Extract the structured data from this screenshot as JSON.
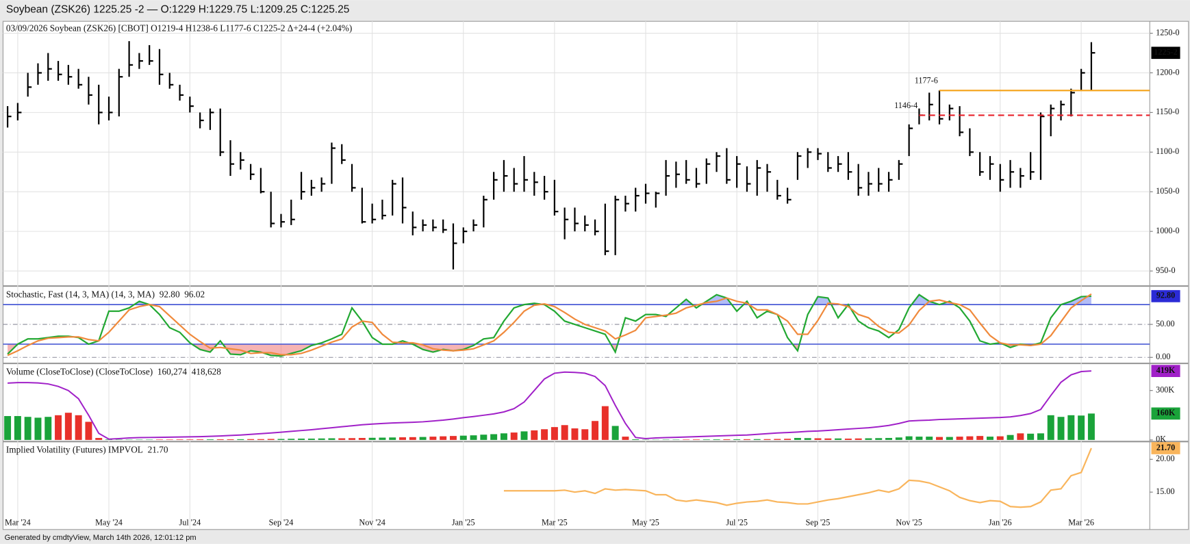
{
  "header": "Soybean (ZSK26) 1225.25 -2 — O:1229 H:1229.75 L:1209.25 C:1225.25",
  "footer": "Generated by cmdtyView, March 14th 2026, 12:01:12 pm",
  "chart_data": [
    {
      "type": "ohlc",
      "title": "03/09/2026 Soybean (ZSK26) [CBOT] O1219-4 H1238-6 L1177-6 C1225-2 Δ+24-4 (+2.04%)",
      "categories": [
        null,
        "Mar '24",
        null,
        null,
        null,
        null,
        null,
        null,
        null,
        null,
        "May '24",
        null,
        null,
        null,
        null,
        null,
        null,
        null,
        "Jul '24",
        null,
        null,
        null,
        null,
        null,
        null,
        null,
        null,
        "Sep '24",
        null,
        null,
        null,
        null,
        null,
        null,
        null,
        null,
        "Nov '24",
        null,
        null,
        null,
        null,
        null,
        null,
        null,
        null,
        "Jan '25",
        null,
        null,
        null,
        null,
        null,
        null,
        null,
        null,
        "Mar '25",
        null,
        null,
        null,
        null,
        null,
        null,
        null,
        null,
        "May '25",
        null,
        null,
        null,
        null,
        null,
        null,
        null,
        null,
        "Jul '25",
        null,
        null,
        null,
        null,
        null,
        null,
        null,
        "Sep '25",
        null,
        null,
        null,
        null,
        null,
        null,
        null,
        null,
        "Nov '25",
        null,
        null,
        null,
        null,
        null,
        null,
        null,
        null,
        "Jan '26",
        null,
        null,
        null,
        null,
        null,
        null,
        null,
        "Mar '26",
        null
      ],
      "high": [
        1158,
        1162,
        1200,
        1212,
        1225,
        1215,
        1210,
        1205,
        1195,
        1185,
        1170,
        1205,
        1240,
        1225,
        1235,
        1230,
        1200,
        1185,
        1170,
        1150,
        1155,
        1155,
        1115,
        1100,
        1085,
        1080,
        1050,
        1022,
        1040,
        1075,
        1065,
        1068,
        1112,
        1110,
        1085,
        1055,
        1035,
        1040,
        1065,
        1068,
        1025,
        1015,
        1015,
        1015,
        1010,
        1005,
        1015,
        1045,
        1075,
        1090,
        1080,
        1095,
        1075,
        1070,
        1065,
        1030,
        1030,
        1020,
        1015,
        1035,
        1045,
        1045,
        1055,
        1060,
        1050,
        1090,
        1088,
        1090,
        1080,
        1092,
        1100,
        1105,
        1095,
        1082,
        1090,
        1085,
        1065,
        1055,
        1100,
        1105,
        1105,
        1100,
        1095,
        1100,
        1085,
        1075,
        1080,
        1075,
        1090,
        1135,
        1155,
        1175,
        1177.75,
        1160,
        1158,
        1130,
        1100,
        1095,
        1085,
        1090,
        1080,
        1100,
        1150,
        1160,
        1165,
        1180,
        1205,
        1238.75
      ],
      "low": [
        1131,
        1140,
        1170,
        1185,
        1190,
        1190,
        1185,
        1180,
        1160,
        1135,
        1140,
        1145,
        1195,
        1205,
        1210,
        1185,
        1180,
        1165,
        1150,
        1130,
        1128,
        1095,
        1070,
        1078,
        1065,
        1048,
        1005,
        1005,
        1008,
        1040,
        1045,
        1050,
        1060,
        1085,
        1050,
        1010,
        1010,
        1015,
        1020,
        1010,
        995,
        1000,
        1000,
        998,
        952,
        985,
        1000,
        1005,
        1040,
        1050,
        1050,
        1050,
        1045,
        1040,
        1020,
        990,
        1000,
        1000,
        995,
        970,
        970,
        1025,
        1025,
        1035,
        1030,
        1045,
        1055,
        1060,
        1055,
        1060,
        1075,
        1060,
        1055,
        1050,
        1045,
        1050,
        1040,
        1035,
        1065,
        1080,
        1090,
        1075,
        1075,
        1065,
        1045,
        1045,
        1050,
        1050,
        1065,
        1095,
        1135,
        1140,
        1135,
        1140,
        1120,
        1095,
        1070,
        1065,
        1050,
        1055,
        1055,
        1065,
        1065,
        1120,
        1140,
        1145,
        1178,
        1177.75
      ],
      "close": [
        1145,
        1150,
        1182,
        1200,
        1205,
        1198,
        1195,
        1185,
        1172,
        1150,
        1150,
        1195,
        1210,
        1215,
        1215,
        1198,
        1185,
        1172,
        1158,
        1140,
        1150,
        1100,
        1085,
        1090,
        1072,
        1050,
        1010,
        1012,
        1015,
        1050,
        1055,
        1060,
        1105,
        1090,
        1055,
        1012,
        1015,
        1020,
        1060,
        1030,
        1005,
        1008,
        1005,
        1002,
        985,
        1000,
        1008,
        1040,
        1065,
        1070,
        1060,
        1065,
        1062,
        1050,
        1025,
        1015,
        1010,
        1008,
        1000,
        975,
        1040,
        1035,
        1045,
        1048,
        1048,
        1070,
        1072,
        1065,
        1060,
        1085,
        1095,
        1065,
        1085,
        1060,
        1080,
        1075,
        1045,
        1040,
        1095,
        1100,
        1098,
        1080,
        1085,
        1075,
        1055,
        1060,
        1060,
        1065,
        1085,
        1130,
        1146.5,
        1160,
        1142,
        1155,
        1125,
        1100,
        1075,
        1085,
        1065,
        1075,
        1070,
        1075,
        1145,
        1155,
        1160,
        1175,
        1200,
        1225.25
      ],
      "color": "#000000",
      "ylim": [
        932,
        1265
      ],
      "yticks": [
        {
          "value": 950,
          "label": "950-0"
        },
        {
          "value": 1000,
          "label": "1000-0"
        },
        {
          "value": 1050,
          "label": "1050-0"
        },
        {
          "value": 1100,
          "label": "1100-0"
        },
        {
          "value": 1150,
          "label": "1150-0"
        },
        {
          "value": 1200,
          "label": "1200-0"
        },
        {
          "value": 1250,
          "label": "1250-0"
        }
      ],
      "last_label": "1225-2",
      "annotations": [
        {
          "label": "1177-6",
          "value": 1177.75,
          "color": "#f5a623",
          "dashed": false
        },
        {
          "label": "1146-4",
          "value": 1146.5,
          "color": "#e8202a",
          "dashed": true
        }
      ],
      "grid": true
    },
    {
      "type": "line",
      "title": "Stochastic, Fast (14, 3, MA)  (14, 3, MA)",
      "series": [
        {
          "color": "#22a832",
          "label_color": "#2b2bd6",
          "value_label": "92.80",
          "values": [
            5,
            20,
            28,
            28,
            30,
            32,
            32,
            30,
            20,
            25,
            70,
            70,
            75,
            85,
            80,
            65,
            45,
            38,
            22,
            12,
            8,
            25,
            5,
            4,
            10,
            8,
            3,
            2,
            6,
            10,
            18,
            22,
            28,
            35,
            75,
            55,
            30,
            20,
            20,
            25,
            20,
            12,
            8,
            12,
            10,
            12,
            18,
            28,
            30,
            55,
            75,
            80,
            82,
            80,
            70,
            55,
            50,
            45,
            40,
            35,
            8,
            60,
            55,
            65,
            65,
            62,
            75,
            88,
            75,
            85,
            95,
            90,
            70,
            85,
            60,
            70,
            65,
            30,
            10,
            65,
            92,
            90,
            60,
            80,
            55,
            45,
            40,
            30,
            42,
            75,
            95,
            85,
            80,
            85,
            75,
            55,
            25,
            20,
            22,
            15,
            20,
            18,
            22,
            60,
            80,
            85,
            92,
            92.8
          ]
        },
        {
          "color": "#f08a3c",
          "label_color": "#f08a3c",
          "value_label": "96.02",
          "values": [
            3,
            10,
            18,
            25,
            29,
            30,
            31,
            31,
            27,
            25,
            38,
            55,
            72,
            77,
            80,
            77,
            63,
            49,
            35,
            24,
            14,
            15,
            13,
            11,
            6,
            7,
            7,
            4,
            4,
            6,
            11,
            17,
            23,
            28,
            46,
            55,
            53,
            35,
            23,
            22,
            22,
            19,
            13,
            11,
            10,
            11,
            13,
            19,
            25,
            38,
            53,
            70,
            79,
            81,
            77,
            68,
            58,
            50,
            45,
            40,
            28,
            34,
            41,
            60,
            62,
            64,
            67,
            75,
            79,
            83,
            85,
            90,
            85,
            82,
            72,
            72,
            65,
            55,
            35,
            35,
            56,
            82,
            81,
            77,
            65,
            60,
            47,
            38,
            37,
            49,
            71,
            85,
            87,
            83,
            80,
            72,
            52,
            33,
            22,
            19,
            19,
            18,
            20,
            33,
            54,
            75,
            86,
            96.02
          ]
        }
      ],
      "ylim": [
        -8,
        107
      ],
      "yticks": [
        {
          "value": 0,
          "label": "0.00"
        },
        {
          "value": 50,
          "label": "50.00"
        }
      ],
      "levels": [
        80,
        20
      ],
      "level_color": "#4a5bd6",
      "high_fill": "#7f8ff0",
      "low_fill": "#f08080",
      "grid": true
    },
    {
      "type": "volume",
      "title": "Volume (CloseToClose)  (CloseToClose)",
      "series": [
        {
          "up_color": "#1aa33a",
          "down_color": "#e8302a",
          "value_label": "160,274",
          "axis_label": "160K",
          "label_color": "#1aa33a",
          "values": [
            145000,
            145000,
            140000,
            135000,
            140000,
            150000,
            165000,
            150000,
            110000,
            12000,
            3000,
            2000,
            2000,
            2000,
            2000,
            2500,
            2500,
            3000,
            3000,
            3500,
            3500,
            4000,
            4000,
            4500,
            5000,
            5000,
            6000,
            6000,
            7000,
            8000,
            8000,
            9000,
            10000,
            10000,
            11000,
            12000,
            13000,
            14000,
            15000,
            16000,
            17000,
            18000,
            20000,
            22000,
            24000,
            26000,
            28000,
            32000,
            35000,
            40000,
            45000,
            52000,
            58000,
            65000,
            78000,
            90000,
            70000,
            65000,
            115000,
            205000,
            85000,
            20000,
            4000,
            1500,
            1500,
            2000,
            2000,
            2500,
            3000,
            3000,
            3500,
            4000,
            4000,
            4500,
            5000,
            5000,
            6000,
            7000,
            12000,
            11000,
            10000,
            9000,
            9000,
            8000,
            9000,
            10000,
            11000,
            12000,
            15000,
            22000,
            20000,
            20000,
            18000,
            18000,
            20000,
            22000,
            24000,
            20000,
            22000,
            30000,
            40000,
            38000,
            40000,
            150000,
            140000,
            150000,
            148000,
            160274
          ]
        },
        {
          "color": "#a020c8",
          "value_label": "418,628",
          "axis_label": "419K",
          "label_color": "#a020c8",
          "values": [
            345000,
            348000,
            348000,
            346000,
            340000,
            325000,
            300000,
            250000,
            150000,
            40000,
            5000,
            8000,
            12000,
            14000,
            15000,
            16000,
            17000,
            18000,
            19000,
            20000,
            22000,
            24000,
            27000,
            30000,
            34000,
            38000,
            42000,
            47000,
            52000,
            57000,
            62000,
            68000,
            74000,
            80000,
            86000,
            92000,
            96000,
            100000,
            103000,
            105000,
            107000,
            110000,
            115000,
            120000,
            127000,
            135000,
            142000,
            150000,
            158000,
            170000,
            190000,
            230000,
            300000,
            370000,
            405000,
            412000,
            410000,
            405000,
            385000,
            330000,
            210000,
            100000,
            15000,
            8000,
            12000,
            14000,
            16000,
            18000,
            20000,
            22000,
            24000,
            26000,
            28000,
            30000,
            34000,
            38000,
            42000,
            45000,
            48000,
            52000,
            54000,
            58000,
            62000,
            66000,
            70000,
            74000,
            80000,
            88000,
            100000,
            115000,
            118000,
            120000,
            124000,
            126000,
            128000,
            130000,
            132000,
            134000,
            136000,
            140000,
            148000,
            160000,
            185000,
            270000,
            350000,
            395000,
            415000,
            418628
          ]
        }
      ],
      "ylim": [
        -5000,
        460000
      ],
      "yticks": [
        {
          "value": 0,
          "label": "0K"
        },
        {
          "value": 300000,
          "label": "300K"
        }
      ],
      "grid": false
    },
    {
      "type": "line",
      "title": "Implied Volatility (Futures)  IMPVOL",
      "series": [
        {
          "color": "#f9b55c",
          "label_color": "#f9b55c",
          "value_label": "21.70",
          "values": [
            null,
            null,
            null,
            null,
            null,
            null,
            null,
            null,
            null,
            null,
            null,
            null,
            null,
            null,
            null,
            null,
            null,
            null,
            null,
            null,
            null,
            null,
            null,
            null,
            null,
            null,
            null,
            null,
            null,
            null,
            null,
            null,
            null,
            null,
            null,
            null,
            null,
            null,
            null,
            null,
            null,
            null,
            null,
            null,
            null,
            null,
            null,
            null,
            null,
            15.2,
            15.2,
            15.2,
            15.2,
            15.2,
            15.2,
            15.3,
            15.0,
            15.2,
            14.8,
            15.5,
            15.3,
            15.4,
            15.3,
            15.2,
            14.6,
            14.6,
            13.8,
            13.6,
            13.8,
            13.6,
            13.4,
            13.0,
            13.3,
            13.5,
            13.6,
            13.8,
            13.5,
            13.4,
            13.2,
            13.2,
            13.5,
            13.8,
            14.0,
            14.3,
            14.6,
            14.9,
            15.3,
            15.0,
            15.5,
            16.8,
            16.7,
            16.4,
            15.8,
            15.2,
            14.2,
            13.7,
            13.4,
            13.7,
            13.6,
            12.8,
            12.7,
            12.8,
            13.5,
            15.3,
            15.5,
            17.5,
            18.0,
            21.7
          ]
        }
      ],
      "ylim": [
        9.3,
        22.6
      ],
      "yticks": [
        {
          "value": 15,
          "label": "15.00"
        },
        {
          "value": 20,
          "label": "20.00"
        }
      ],
      "grid": false
    }
  ]
}
